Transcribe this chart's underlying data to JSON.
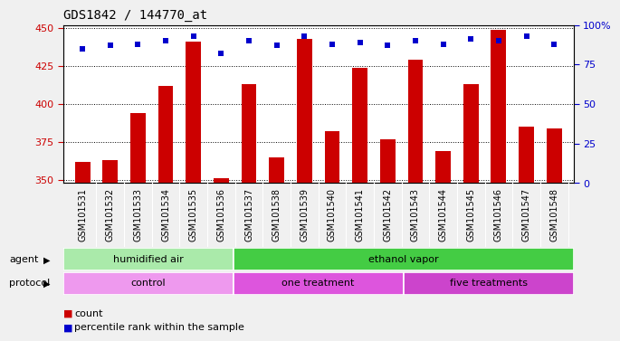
{
  "title": "GDS1842 / 144770_at",
  "samples": [
    "GSM101531",
    "GSM101532",
    "GSM101533",
    "GSM101534",
    "GSM101535",
    "GSM101536",
    "GSM101537",
    "GSM101538",
    "GSM101539",
    "GSM101540",
    "GSM101541",
    "GSM101542",
    "GSM101543",
    "GSM101544",
    "GSM101545",
    "GSM101546",
    "GSM101547",
    "GSM101548"
  ],
  "counts": [
    362,
    363,
    394,
    412,
    441,
    351,
    413,
    365,
    443,
    382,
    424,
    377,
    429,
    369,
    413,
    449,
    385,
    384
  ],
  "percentile_ranks": [
    85,
    87,
    88,
    90,
    93,
    82,
    90,
    87,
    93,
    88,
    89,
    87,
    90,
    88,
    91,
    90,
    93,
    88
  ],
  "ylim_left": [
    348,
    452
  ],
  "ylim_right": [
    0,
    100
  ],
  "yticks_left": [
    350,
    375,
    400,
    425,
    450
  ],
  "yticks_right": [
    0,
    25,
    50,
    75,
    100
  ],
  "bar_color": "#cc0000",
  "dot_color": "#0000cc",
  "agent_groups": [
    {
      "label": "humidified air",
      "start": 0,
      "end": 6,
      "color": "#aaeaaa"
    },
    {
      "label": "ethanol vapor",
      "start": 6,
      "end": 18,
      "color": "#44cc44"
    }
  ],
  "protocol_groups": [
    {
      "label": "control",
      "start": 0,
      "end": 6,
      "color": "#ee99ee"
    },
    {
      "label": "one treatment",
      "start": 6,
      "end": 12,
      "color": "#dd55dd"
    },
    {
      "label": "five treatments",
      "start": 12,
      "end": 18,
      "color": "#cc44cc"
    }
  ],
  "legend_count_label": "count",
  "legend_percentile_label": "percentile rank within the sample",
  "bg_color": "#f0f0f0",
  "plot_bg_color": "#ffffff",
  "xtick_bg_color": "#d8d8d8",
  "title_fontsize": 10,
  "tick_fontsize": 7,
  "label_fontsize": 8,
  "left_axis_color": "#cc0000",
  "right_axis_color": "#0000cc"
}
